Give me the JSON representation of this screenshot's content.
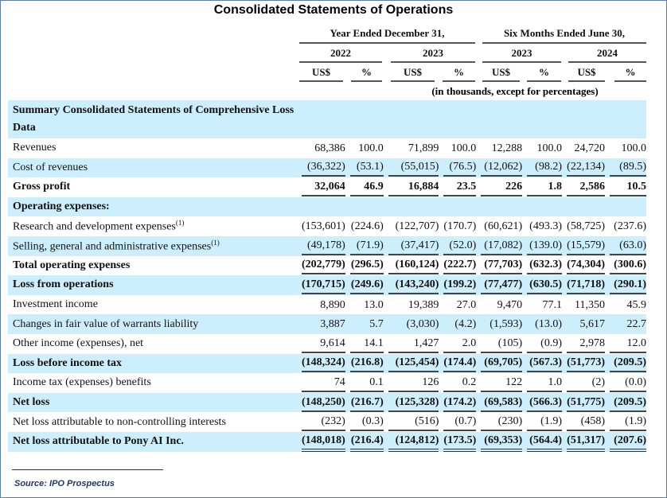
{
  "title": "Consolidated Statements of Operations",
  "headers": {
    "group1": "Year Ended December 31,",
    "group2": "Six Months Ended June 30,",
    "years": [
      "2022",
      "2023",
      "2023",
      "2024"
    ],
    "cols": [
      "US$",
      "%",
      "US$",
      "%",
      "US$",
      "%",
      "US$",
      "%"
    ],
    "units": "(in thousands, except for percentages)"
  },
  "section_heading": "Summary Consolidated Statements of Comprehensive Loss Data",
  "rows": [
    {
      "label": "Revenues",
      "sup": "",
      "values": [
        "68,386",
        "100.0",
        "71,899",
        "100.0",
        "12,288",
        "100.0",
        "24,720",
        "100.0"
      ]
    },
    {
      "label": "Cost of revenues",
      "sup": "",
      "values": [
        "(36,322)",
        "(53.1)",
        "(55,015)",
        "(76.5)",
        "(12,062)",
        "(98.2)",
        "(22,134)",
        "(89.5)"
      ]
    },
    {
      "label": "Gross profit",
      "sup": "",
      "values": [
        "32,064",
        "46.9",
        "16,884",
        "23.5",
        "226",
        "1.8",
        "2,586",
        "10.5"
      ]
    },
    {
      "label": "Operating expenses:",
      "sup": "",
      "values": [
        "",
        "",
        "",
        "",
        "",
        "",
        "",
        ""
      ]
    },
    {
      "label": "Research and development expenses",
      "sup": "(1)",
      "values": [
        "(153,601)",
        "(224.6)",
        "(122,707)",
        "(170.7)",
        "(60,621)",
        "(493.3)",
        "(58,725)",
        "(237.6)"
      ]
    },
    {
      "label": "Selling, general and administrative expenses",
      "sup": "(1)",
      "values": [
        "(49,178)",
        "(71.9)",
        "(37,417)",
        "(52.0)",
        "(17,082)",
        "(139.0)",
        "(15,579)",
        "(63.0)"
      ]
    },
    {
      "label": "Total operating expenses",
      "sup": "",
      "values": [
        "(202,779)",
        "(296.5)",
        "(160,124)",
        "(222.7)",
        "(77,703)",
        "(632.3)",
        "(74,304)",
        "(300.6)"
      ]
    },
    {
      "label": "Loss from operations",
      "sup": "",
      "values": [
        "(170,715)",
        "(249.6)",
        "(143,240)",
        "(199.2)",
        "(77,477)",
        "(630.5)",
        "(71,718)",
        "(290.1)"
      ]
    },
    {
      "label": "Investment income",
      "sup": "",
      "values": [
        "8,890",
        "13.0",
        "19,389",
        "27.0",
        "9,470",
        "77.1",
        "11,350",
        "45.9"
      ]
    },
    {
      "label": "Changes in fair value of warrants liability",
      "sup": "",
      "values": [
        "3,887",
        "5.7",
        "(3,030)",
        "(4.2)",
        "(1,593)",
        "(13.0)",
        "5,617",
        "22.7"
      ]
    },
    {
      "label": "Other income (expenses), net",
      "sup": "",
      "values": [
        "9,614",
        "14.1",
        "1,427",
        "2.0",
        "(105)",
        "(0.9)",
        "2,978",
        "12.0"
      ]
    },
    {
      "label": "Loss before income tax",
      "sup": "",
      "values": [
        "(148,324)",
        "(216.8)",
        "(125,454)",
        "(174.4)",
        "(69,705)",
        "(567.3)",
        "(51,773)",
        "(209.5)"
      ]
    },
    {
      "label": "Income tax (expenses) benefits",
      "sup": "",
      "values": [
        "74",
        "0.1",
        "126",
        "0.2",
        "122",
        "1.0",
        "(2)",
        "(0.0)"
      ]
    },
    {
      "label": "Net loss",
      "sup": "",
      "values": [
        "(148,250)",
        "(216.7)",
        "(125,328)",
        "(174.2)",
        "(69,583)",
        "(566.3)",
        "(51,775)",
        "(209.5)"
      ]
    },
    {
      "label": "Net loss attributable to non-controlling interests",
      "sup": "",
      "values": [
        "(232)",
        "(0.3)",
        "(516)",
        "(0.7)",
        "(230)",
        "(1.9)",
        "(458)",
        "(1.9)"
      ]
    },
    {
      "label": "Net loss attributable to Pony AI Inc.",
      "sup": "",
      "values": [
        "(148,018)",
        "(216.4)",
        "(124,812)",
        "(173.5)",
        "(69,353)",
        "(564.4)",
        "(51,317)",
        "(207.6)"
      ]
    }
  ],
  "source": "Source: IPO Prospectus",
  "colors": {
    "row_shade": "#cdeefc",
    "border": "#5b7db5",
    "source_text": "#1f3864"
  }
}
